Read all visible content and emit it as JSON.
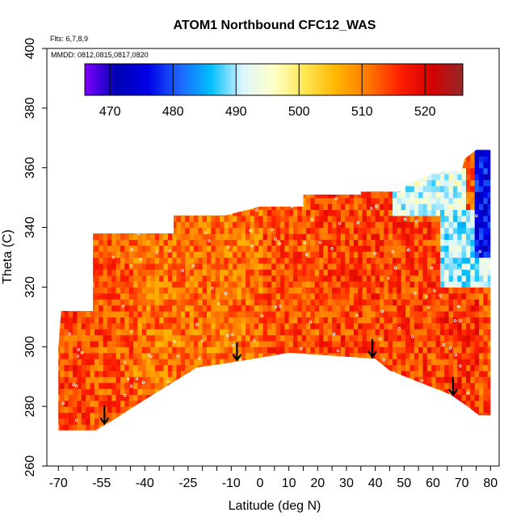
{
  "chart_data": {
    "type": "heatmap",
    "title": "ATOM1 Northbound CFC12_WAS",
    "subtitle_flights": "Flts: 6,7,8,9",
    "subtitle_dates": "MMDD: 0812,0815,0817,0820",
    "xlabel": "Latitude (deg N)",
    "ylabel": "Theta (C)",
    "xlim": [
      -70,
      80
    ],
    "ylim": [
      260,
      400
    ],
    "x_tick_labels": [
      "-70",
      "-55",
      "-40",
      "-25",
      "-10",
      "0",
      "10",
      "20",
      "30",
      "40",
      "50",
      "60",
      "70",
      "80"
    ],
    "y_tick_labels": [
      "260",
      "280",
      "300",
      "320",
      "340",
      "360",
      "380",
      "400"
    ],
    "colorbar": {
      "range": [
        466,
        526
      ],
      "tick_labels": [
        "470",
        "480",
        "490",
        "500",
        "510",
        "520"
      ],
      "colors": [
        "#7f00ff",
        "#0000b4",
        "#0000e6",
        "#1e64ff",
        "#00beff",
        "#dcf5ff",
        "#ffffc8",
        "#ffe650",
        "#ffb400",
        "#ff7800",
        "#ff1e00",
        "#d20000",
        "#962828"
      ]
    },
    "field_outline": {
      "lat": [
        -70,
        -70,
        -69,
        -58,
        -58,
        -30,
        -30,
        -12,
        0,
        15,
        15,
        35,
        35,
        50,
        50,
        55,
        60,
        65,
        70,
        71,
        75,
        80,
        80,
        76,
        72,
        66,
        45,
        40,
        10,
        -8,
        -22,
        -42,
        -50,
        -57,
        -62,
        -70
      ],
      "theta": [
        272,
        300,
        312,
        312,
        338,
        338,
        344,
        344,
        347,
        347,
        351,
        351,
        352,
        352,
        354,
        356,
        358,
        359,
        359,
        363,
        366,
        366,
        277,
        277,
        280,
        284,
        292,
        296,
        298,
        295,
        293,
        281,
        276,
        272,
        272,
        272
      ]
    },
    "low_theta_arrows_lat": [
      -54,
      -8,
      39,
      67
    ],
    "field_regions": [
      {
        "lat": [
          -70,
          -60
        ],
        "theta": [
          272,
          312
        ],
        "value": 514
      },
      {
        "lat": [
          -60,
          -45
        ],
        "theta": [
          272,
          330
        ],
        "value": 513
      },
      {
        "lat": [
          -45,
          -30
        ],
        "theta": [
          283,
          338
        ],
        "value": 511
      },
      {
        "lat": [
          -30,
          0
        ],
        "theta": [
          294,
          346
        ],
        "value": 511
      },
      {
        "lat": [
          0,
          20
        ],
        "theta": [
          297,
          350
        ],
        "value": 513
      },
      {
        "lat": [
          20,
          45
        ],
        "theta": [
          292,
          350
        ],
        "value": 514
      },
      {
        "lat": [
          45,
          62
        ],
        "theta": [
          286,
          345
        ],
        "value": 514
      },
      {
        "lat": [
          62,
          75
        ],
        "theta": [
          279,
          320
        ],
        "value": 515
      },
      {
        "lat": [
          45,
          70
        ],
        "theta": [
          344,
          358
        ],
        "value": 492
      },
      {
        "lat": [
          62,
          80
        ],
        "theta": [
          320,
          345
        ],
        "value": 490
      },
      {
        "lat": [
          74,
          80
        ],
        "theta": [
          330,
          366
        ],
        "value": 476
      }
    ]
  }
}
